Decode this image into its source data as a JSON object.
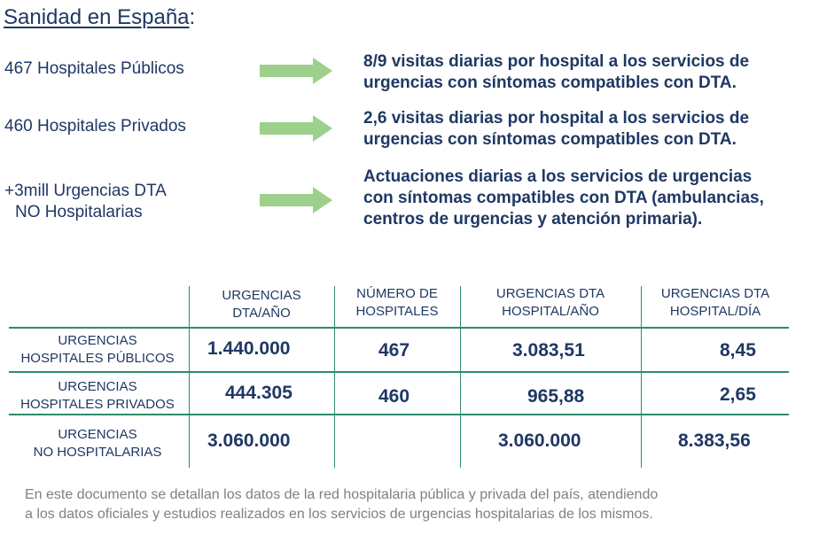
{
  "title": {
    "main": "Sanidad en España",
    "colon": ":"
  },
  "summary": [
    {
      "left": "467 Hospitales Públicos",
      "right_line1": "8/9 visitas diarias por hospital a los servicios de",
      "right_line2": "urgencias con síntomas compatibles con DTA."
    },
    {
      "left": "460 Hospitales Privados",
      "right_line1": "2,6 visitas diarias por hospital a los servicios de",
      "right_line2": "urgencias con síntomas compatibles con DTA."
    },
    {
      "left_line1": "+3mill Urgencias DTA",
      "left_line2": "NO Hospitalarias",
      "right_line1": "Actuaciones diarias a los servicios de urgencias",
      "right_line2": "con síntomas compatibles con DTA (ambulancias,",
      "right_line3": "centros de urgencias y atención primaria)."
    }
  ],
  "table": {
    "headers": [
      {
        "line1": "URGENCIAS",
        "line2": "DTA/AÑO"
      },
      {
        "line1": "NÚMERO DE",
        "line2": "HOSPITALES"
      },
      {
        "line1": "URGENCIAS DTA",
        "line2": "HOSPITAL/AÑO"
      },
      {
        "line1": "URGENCIAS DTA",
        "line2": "HOSPITAL/DÍA"
      }
    ],
    "rows": [
      {
        "label_line1": "URGENCIAS",
        "label_line2": "HOSPITALES PÚBLICOS",
        "urgencias_ano": "1.440.000",
        "hospitales": "467",
        "hospital_ano": "3.083,51",
        "hospital_dia": "8,45"
      },
      {
        "label_line1": "URGENCIAS",
        "label_line2": "HOSPITALES PRIVADOS",
        "urgencias_ano": "444.305",
        "hospitales": "460",
        "hospital_ano": "965,88",
        "hospital_dia": "2,65"
      },
      {
        "label_line1": "URGENCIAS",
        "label_line2": "NO HOSPITALARIAS",
        "urgencias_ano": "3.060.000",
        "hospitales": "",
        "hospital_ano": "3.060.000",
        "hospital_dia": "8.383,56"
      }
    ]
  },
  "note": {
    "line1": "En este documento se detallan los datos de la red hospitalaria pública y privada del país, atendiendo",
    "line2": "a los datos oficiales y estudios realizados en los servicios de urgencias hospitalarias de los mismos."
  },
  "colors": {
    "text": "#1f3864",
    "arrow": "#9dd08a",
    "grid": "#2e8b6b",
    "note": "#808080"
  }
}
